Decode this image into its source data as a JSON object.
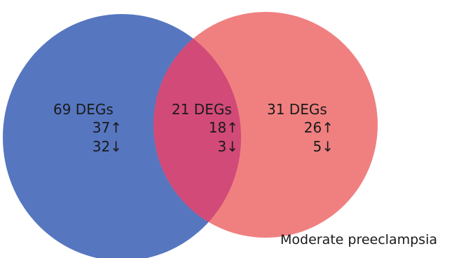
{
  "colors": {
    "left_circle": "#5676c0",
    "right_circle": "#f08080",
    "overlap": "#d24a78"
  },
  "regions": {
    "left": {
      "total": "69 DEGs",
      "up": "37↑",
      "down": "32↓"
    },
    "overlap": {
      "total": "21 DEGs",
      "up": "18↑",
      "down": "3↓"
    },
    "right": {
      "total": "31 DEGs",
      "up": "26↑",
      "down": "5↓"
    }
  },
  "labels": {
    "right_set": "Moderate preeclampsia"
  }
}
